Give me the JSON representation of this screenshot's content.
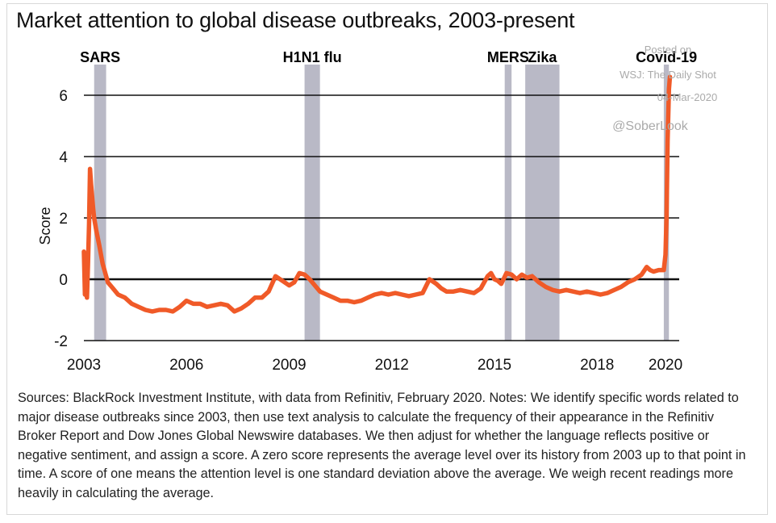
{
  "title": "Market attention to global disease outbreaks, 2003-present",
  "notes": "Sources: BlackRock Investment Institute, with data from Refinitiv, February 2020. Notes: We identify specific words related to major disease outbreaks since 2003, then use text analysis to calculate the frequency of their appearance in the Refinitiv Broker Report and Dow Jones Global Newswire databases. We then adjust for whether the language reflects positive or negative sentiment, and assign a score. A zero score represents the average level over its history from 2003 up to that point in time. A score of one means the attention level is one standard deviation above the average. We weigh recent readings more heavily in calculating the average.",
  "watermark": {
    "line1": "Posted on",
    "line2": "WSJ: The Daily Shot",
    "line3": "04-Mar-2020",
    "line4": "@SoberLook"
  },
  "colors": {
    "line": "#f05a28",
    "band": "#b9b9c6",
    "grid": "#111111"
  },
  "chart_data": {
    "type": "line",
    "title": "Market attention to global disease outbreaks, 2003-present",
    "xlabel": "",
    "ylabel": "Score",
    "xlim": [
      2003,
      2020.4
    ],
    "ylim": [
      -2,
      7
    ],
    "xticks": [
      2003,
      2006,
      2009,
      2012,
      2015,
      2018,
      2020
    ],
    "xtick_labels": [
      "2003",
      "2006",
      "2009",
      "2012",
      "2015",
      "2018",
      "2020"
    ],
    "yticks": [
      -2,
      0,
      2,
      4,
      6
    ],
    "ytick_labels": [
      "-2",
      "0",
      "2",
      "4",
      "6"
    ],
    "grid": true,
    "events": [
      {
        "name": "SARS",
        "start": 2003.3,
        "end": 2003.65
      },
      {
        "name": "H1N1 flu",
        "start": 2009.45,
        "end": 2009.9
      },
      {
        "name": "MERS",
        "start": 2015.3,
        "end": 2015.5
      },
      {
        "name": "Zika",
        "start": 2015.9,
        "end": 2016.9
      },
      {
        "name": "Covid-19",
        "start": 2019.95,
        "end": 2020.1
      }
    ],
    "series": [
      {
        "name": "Score",
        "x": [
          2003.0,
          2003.03,
          2003.06,
          2003.09,
          2003.12,
          2003.15,
          2003.18,
          2003.21,
          2003.24,
          2003.27,
          2003.3,
          2003.36,
          2003.45,
          2003.55,
          2003.7,
          2003.85,
          2004.0,
          2004.2,
          2004.4,
          2004.6,
          2004.8,
          2005.0,
          2005.2,
          2005.4,
          2005.6,
          2005.8,
          2006.0,
          2006.2,
          2006.4,
          2006.6,
          2006.8,
          2007.0,
          2007.2,
          2007.4,
          2007.6,
          2007.8,
          2008.0,
          2008.2,
          2008.4,
          2008.6,
          2008.8,
          2009.0,
          2009.15,
          2009.3,
          2009.45,
          2009.6,
          2009.75,
          2009.9,
          2010.1,
          2010.3,
          2010.5,
          2010.7,
          2010.9,
          2011.1,
          2011.3,
          2011.5,
          2011.7,
          2011.9,
          2012.1,
          2012.3,
          2012.5,
          2012.7,
          2012.9,
          2013.1,
          2013.3,
          2013.45,
          2013.6,
          2013.8,
          2014.0,
          2014.2,
          2014.4,
          2014.6,
          2014.8,
          2014.9,
          2015.0,
          2015.1,
          2015.2,
          2015.35,
          2015.5,
          2015.65,
          2015.8,
          2015.95,
          2016.1,
          2016.3,
          2016.5,
          2016.7,
          2016.9,
          2017.1,
          2017.3,
          2017.5,
          2017.7,
          2017.9,
          2018.1,
          2018.3,
          2018.5,
          2018.7,
          2018.9,
          2019.1,
          2019.3,
          2019.45,
          2019.55,
          2019.65,
          2019.8,
          2019.95,
          2020.0,
          2020.03,
          2020.06,
          2020.1,
          2020.13
        ],
        "values": [
          0.9,
          -0.5,
          -0.2,
          -0.6,
          0.5,
          1.8,
          3.6,
          3.1,
          2.7,
          2.3,
          2.0,
          1.6,
          1.1,
          0.5,
          -0.1,
          -0.3,
          -0.5,
          -0.6,
          -0.8,
          -0.9,
          -1.0,
          -1.05,
          -1.0,
          -1.0,
          -1.05,
          -0.9,
          -0.7,
          -0.8,
          -0.8,
          -0.9,
          -0.85,
          -0.8,
          -0.85,
          -1.05,
          -0.95,
          -0.8,
          -0.6,
          -0.6,
          -0.4,
          0.1,
          -0.05,
          -0.2,
          -0.1,
          0.2,
          0.15,
          0.0,
          -0.2,
          -0.4,
          -0.5,
          -0.6,
          -0.7,
          -0.7,
          -0.75,
          -0.7,
          -0.6,
          -0.5,
          -0.45,
          -0.5,
          -0.45,
          -0.5,
          -0.55,
          -0.5,
          -0.45,
          0.0,
          -0.15,
          -0.3,
          -0.4,
          -0.4,
          -0.35,
          -0.4,
          -0.45,
          -0.3,
          0.1,
          0.2,
          0.0,
          -0.05,
          -0.15,
          0.2,
          0.15,
          0.0,
          0.15,
          0.05,
          0.1,
          -0.1,
          -0.25,
          -0.35,
          -0.4,
          -0.35,
          -0.4,
          -0.45,
          -0.4,
          -0.45,
          -0.5,
          -0.45,
          -0.35,
          -0.25,
          -0.1,
          0.0,
          0.15,
          0.4,
          0.3,
          0.25,
          0.3,
          0.3,
          0.8,
          2.0,
          4.5,
          6.2,
          6.6
        ]
      }
    ]
  }
}
